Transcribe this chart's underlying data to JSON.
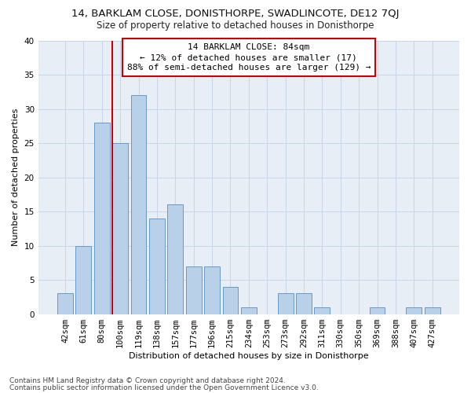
{
  "title1": "14, BARKLAM CLOSE, DONISTHORPE, SWADLINCOTE, DE12 7QJ",
  "title2": "Size of property relative to detached houses in Donisthorpe",
  "xlabel": "Distribution of detached houses by size in Donisthorpe",
  "ylabel": "Number of detached properties",
  "categories": [
    "42sqm",
    "61sqm",
    "80sqm",
    "100sqm",
    "119sqm",
    "138sqm",
    "157sqm",
    "177sqm",
    "196sqm",
    "215sqm",
    "234sqm",
    "253sqm",
    "273sqm",
    "292sqm",
    "311sqm",
    "330sqm",
    "350sqm",
    "369sqm",
    "388sqm",
    "407sqm",
    "427sqm"
  ],
  "values": [
    3,
    10,
    28,
    25,
    32,
    14,
    16,
    7,
    7,
    4,
    1,
    0,
    3,
    3,
    1,
    0,
    0,
    1,
    0,
    1,
    1
  ],
  "bar_color": "#b8d0e8",
  "bar_edge_color": "#6699cc",
  "vline_color": "#cc0000",
  "vline_x_index": 3,
  "annotation_title": "14 BARKLAM CLOSE: 84sqm",
  "annotation_line1": "← 12% of detached houses are smaller (17)",
  "annotation_line2": "88% of semi-detached houses are larger (129) →",
  "annotation_box_facecolor": "#ffffff",
  "annotation_box_edgecolor": "#cc0000",
  "ylim": [
    0,
    40
  ],
  "yticks": [
    0,
    5,
    10,
    15,
    20,
    25,
    30,
    35,
    40
  ],
  "grid_color": "#c8d4e8",
  "background_color": "#e8eef6",
  "footer1": "Contains HM Land Registry data © Crown copyright and database right 2024.",
  "footer2": "Contains public sector information licensed under the Open Government Licence v3.0.",
  "title1_fontsize": 9.5,
  "title2_fontsize": 8.5,
  "xlabel_fontsize": 8,
  "ylabel_fontsize": 8,
  "tick_fontsize": 7.5,
  "annotation_fontsize": 8,
  "footer_fontsize": 6.5
}
